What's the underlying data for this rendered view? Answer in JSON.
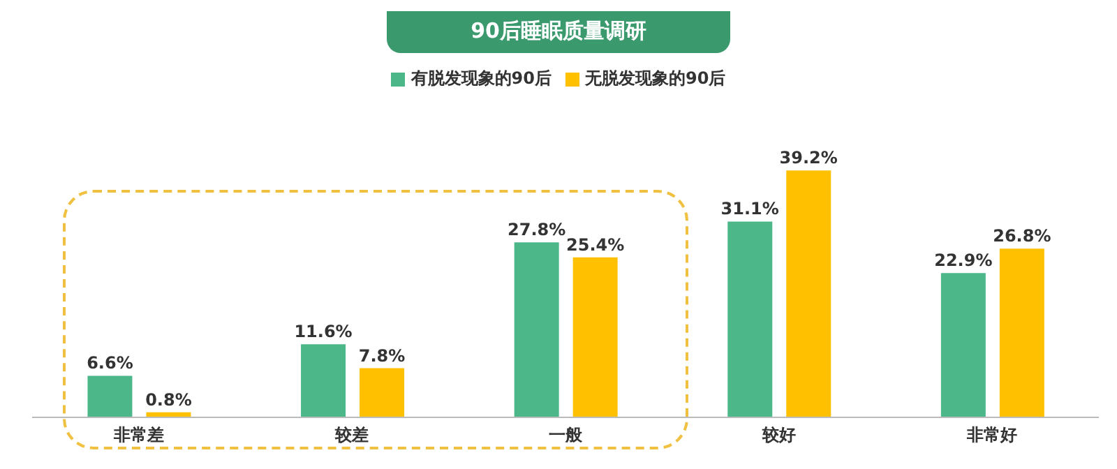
{
  "chart_data": {
    "type": "bar",
    "title": "90后睡眠质量调研",
    "categories": [
      "非常差",
      "较差",
      "一般",
      "较好",
      "非常好"
    ],
    "series": [
      {
        "name": "有脱发现象的90后",
        "color": "#4cb88a",
        "values": [
          6.6,
          11.6,
          27.8,
          31.1,
          22.9
        ],
        "value_labels": [
          "6.6%",
          "11.6%",
          "27.8%",
          "31.1%",
          "22.9%"
        ]
      },
      {
        "name": "无脱发现象的90后",
        "color": "#ffc000",
        "values": [
          0.8,
          7.8,
          25.4,
          39.2,
          26.8
        ],
        "value_labels": [
          "0.8%",
          "7.8%",
          "25.4%",
          "39.2%",
          "26.8%"
        ]
      }
    ],
    "legend": "top",
    "grid": false
  }
}
